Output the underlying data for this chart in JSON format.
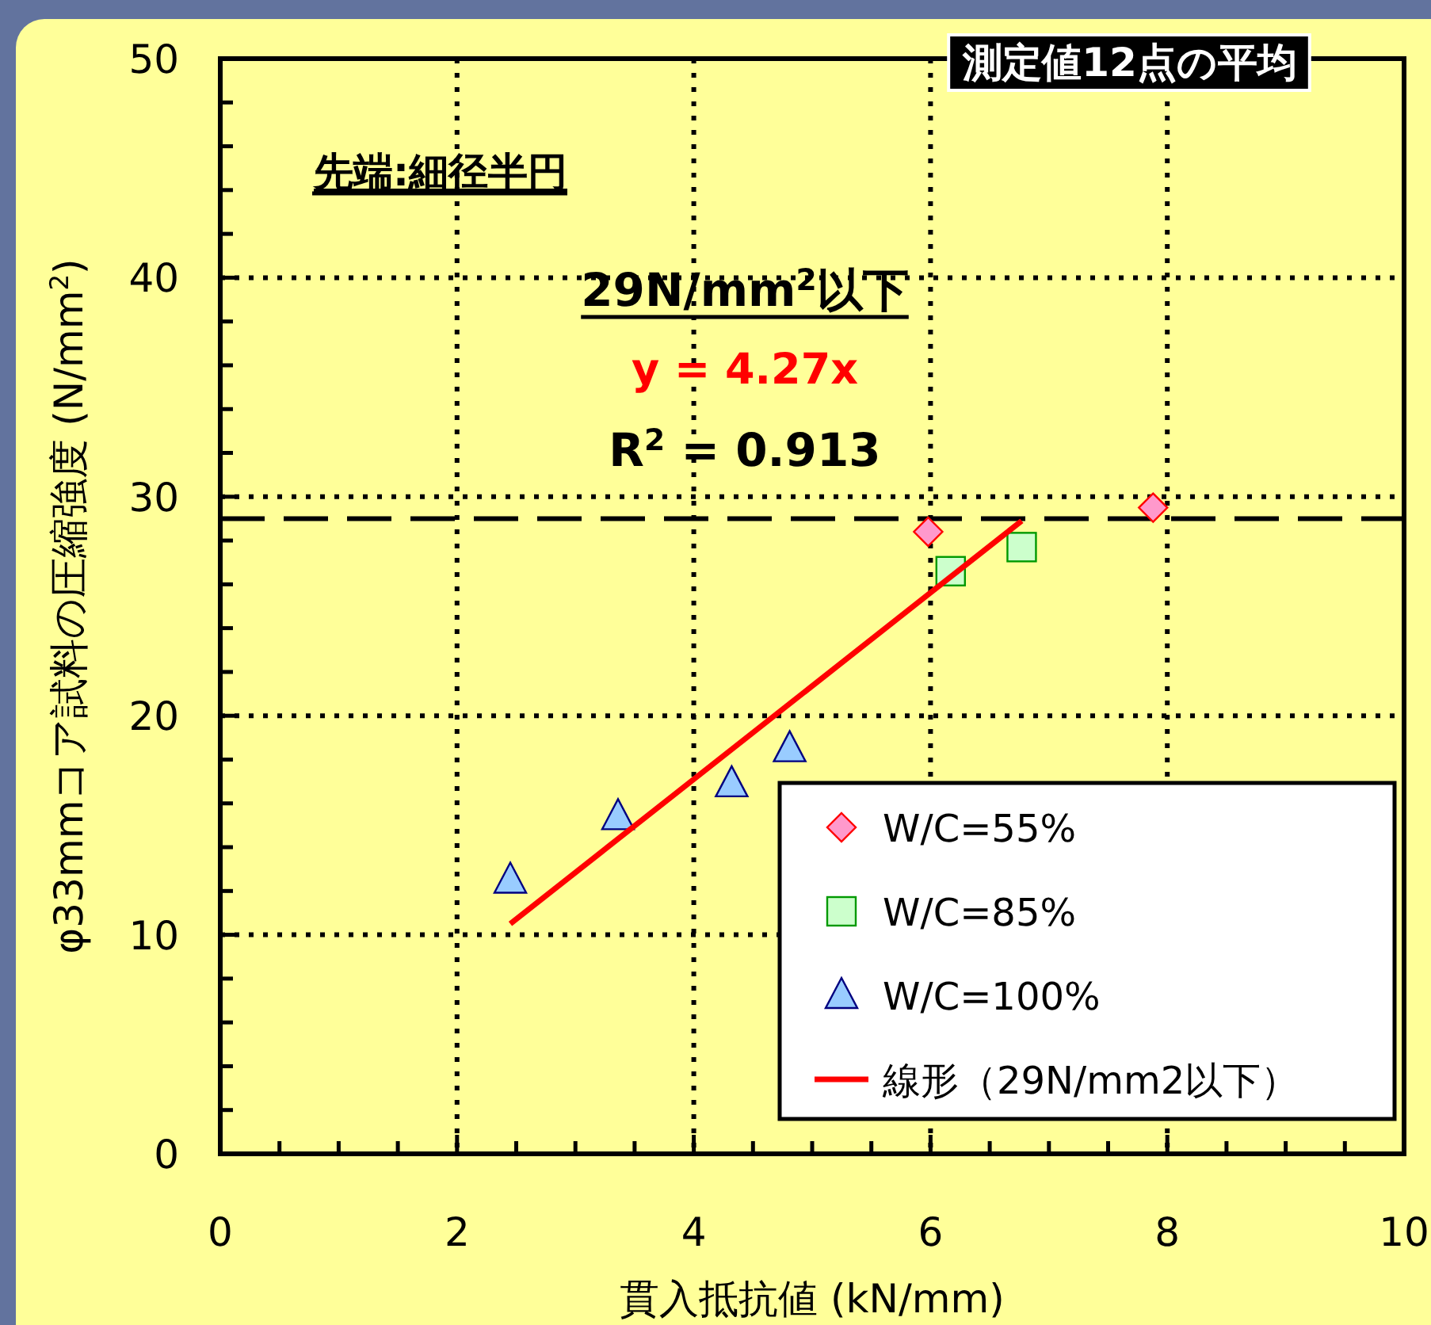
{
  "chart_data": {
    "type": "scatter",
    "xlabel": "貫入抵抗値 (kN/mm)",
    "ylabel": "φ33mmコア試料の圧縮強度 (N/mm$^{2}$)",
    "xlim": [
      0,
      10
    ],
    "ylim": [
      0,
      50
    ],
    "xticks": [
      0,
      {
        "value": 0.5,
        "label": null
      },
      {
        "value": 1,
        "label": null
      },
      {
        "value": 1.5,
        "label": null
      },
      2,
      {
        "value": 2.5,
        "label": null
      },
      {
        "value": 3,
        "label": null
      },
      {
        "value": 3.5,
        "label": null
      },
      4,
      {
        "value": 4.5,
        "label": null
      },
      {
        "value": 5,
        "label": null
      },
      {
        "value": 5.5,
        "label": null
      },
      6,
      {
        "value": 6.5,
        "label": null
      },
      {
        "value": 7,
        "label": null
      },
      {
        "value": 7.5,
        "label": null
      },
      8,
      {
        "value": 8.5,
        "label": null
      },
      {
        "value": 9,
        "label": null
      },
      {
        "value": 9.5,
        "label": null
      },
      10
    ],
    "yticks": [
      0,
      {
        "value": 2,
        "label": null
      },
      {
        "value": 4,
        "label": null
      },
      {
        "value": 6,
        "label": null
      },
      {
        "value": 8,
        "label": null
      },
      10,
      {
        "value": 12,
        "label": null
      },
      {
        "value": 14,
        "label": null
      },
      {
        "value": 16,
        "label": null
      },
      {
        "value": 18,
        "label": null
      },
      20,
      {
        "value": 22,
        "label": null
      },
      {
        "value": 24,
        "label": null
      },
      {
        "value": 26,
        "label": null
      },
      {
        "value": 28,
        "label": null
      },
      30,
      {
        "value": 32,
        "label": null
      },
      {
        "value": 34,
        "label": null
      },
      {
        "value": 36,
        "label": null
      },
      {
        "value": 38,
        "label": null
      },
      40,
      {
        "value": 42,
        "label": null
      },
      {
        "value": 44,
        "label": null
      },
      {
        "value": 46,
        "label": null
      },
      {
        "value": 48,
        "label": null
      },
      50
    ],
    "grid": true,
    "legend": "bottom right",
    "series": [
      {
        "name": "W/C=55%",
        "type": "scatter",
        "marker": "diamond",
        "color": "#ff99cc",
        "x": [
          5.98,
          7.88
        ],
        "values": [
          28.4,
          29.5
        ]
      },
      {
        "name": "W/C=85%",
        "type": "scatter",
        "marker": "square",
        "color": "#ccffcc",
        "x": [
          6.17,
          6.77
        ],
        "values": [
          26.6,
          27.7
        ]
      },
      {
        "name": "W/C=100%",
        "type": "scatter",
        "marker": "triangle",
        "color": "#99ccff",
        "x": [
          2.45,
          3.36,
          4.32,
          4.81
        ],
        "values": [
          12.5,
          15.4,
          16.9,
          18.5
        ]
      },
      {
        "name": "線形（29N/mm2以下）",
        "type": "line",
        "marker": "none",
        "color": "#ff0000",
        "x": [
          2.45,
          6.77
        ],
        "values": [
          10.5,
          28.9
        ]
      }
    ],
    "ref_lines": [
      {
        "axis": "y",
        "value": 29,
        "color": "#000000",
        "line_style": "dashed"
      }
    ],
    "annotations": [
      "測定値12点の平均",
      "先端:細径半円",
      "29N/mm$^{2}$以下",
      "y = 4.27x",
      "R$^{2}$ = 0.913"
    ]
  }
}
